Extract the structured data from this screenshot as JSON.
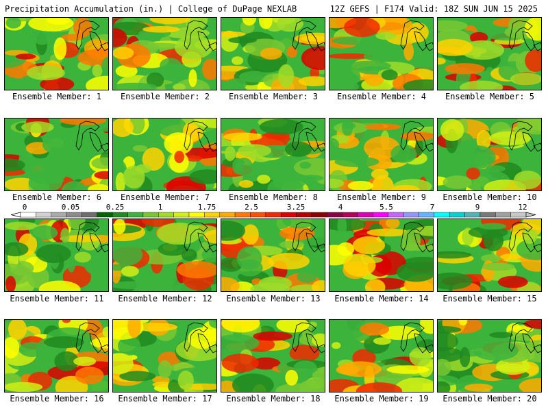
{
  "header": {
    "left": "Precipitation Accumulation (in.) | College of DuPage NEXLAB",
    "right": "12Z GEFS | F174 Valid: 18Z SUN JUN 15 2025"
  },
  "members": [
    "Ensemble Member: 1",
    "Ensemble Member: 2",
    "Ensemble Member: 3",
    "Ensemble Member: 4",
    "Ensemble Member: 5",
    "Ensemble Member: 6",
    "Ensemble Member: 7",
    "Ensemble Member: 8",
    "Ensemble Member: 9",
    "Ensemble Member: 10",
    "Ensemble Member: 11",
    "Ensemble Member: 12",
    "Ensemble Member: 13",
    "Ensemble Member: 14",
    "Ensemble Member: 15",
    "Ensemble Member: 16",
    "Ensemble Member: 17",
    "Ensemble Member: 18",
    "Ensemble Member: 19",
    "Ensemble Member: 20"
  ],
  "colorbar": {
    "tick_labels": [
      "0",
      "0.05",
      "0.25",
      "1",
      "1.75",
      "2.5",
      "3.25",
      "4",
      "5.5",
      "7",
      "9",
      "12"
    ],
    "colors": [
      "#ffffff",
      "#d2d2d2",
      "#aaaaaa",
      "#8c8c8c",
      "#6e6e6e",
      "#006400",
      "#208a20",
      "#3cb43c",
      "#78c832",
      "#a0dc28",
      "#d2f014",
      "#ffff00",
      "#ffd200",
      "#ffaa00",
      "#ff7800",
      "#ff5000",
      "#f02800",
      "#dc0000",
      "#b40000",
      "#8c0000",
      "#8c0046",
      "#b4005a",
      "#dc00b4",
      "#ff00ff",
      "#c864ff",
      "#9696ff",
      "#64b4ff",
      "#00ffff",
      "#00d2d2",
      "#50b4b4",
      "#787878",
      "#a0a0a0",
      "#c8c8c8"
    ]
  }
}
